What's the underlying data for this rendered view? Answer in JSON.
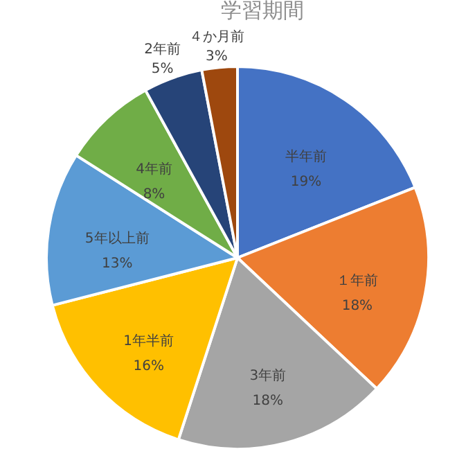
{
  "chart_data": {
    "type": "pie",
    "title": "学習期間",
    "categories": [
      "半年前",
      "１年前",
      "3年前",
      "1年半前",
      "5年以上前",
      "4年前",
      "2年前",
      "４か月前"
    ],
    "values": [
      19,
      18,
      18,
      16,
      13,
      8,
      5,
      3
    ],
    "value_labels": [
      "19%",
      "18%",
      "18%",
      "16%",
      "13%",
      "8%",
      "5%",
      "3%"
    ],
    "colors": [
      "#4472c4",
      "#ed7d31",
      "#a5a5a5",
      "#ffc000",
      "#5b9bd5",
      "#70ad47",
      "#264478",
      "#9e480e"
    ]
  }
}
